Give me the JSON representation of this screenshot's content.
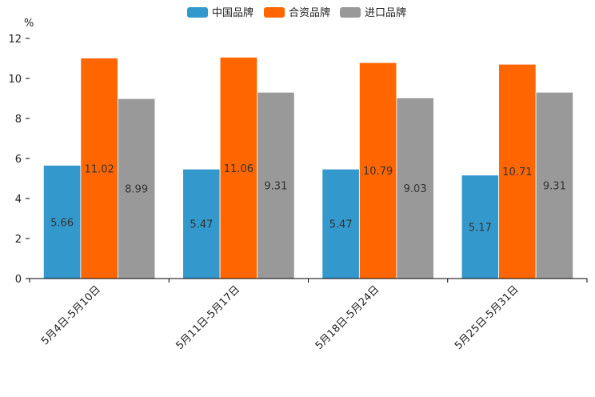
{
  "chart_data": {
    "type": "bar",
    "title": "",
    "unit_label": "%",
    "xlabel": "",
    "ylabel": "%",
    "ylim": [
      0,
      12
    ],
    "yticks": [
      0,
      2,
      4,
      6,
      8,
      10,
      12
    ],
    "grid": false,
    "legend_position": "top-center",
    "categories": [
      "5月4日-5月10日",
      "5月11日-5月17日",
      "5月18日-5月24日",
      "5月25日-5月31日"
    ],
    "series": [
      {
        "name": "中国品牌",
        "color": "#3399cc",
        "values": [
          5.66,
          5.47,
          5.47,
          5.17
        ],
        "labels": [
          "5.66",
          "5.47",
          "5.47",
          "5.17"
        ]
      },
      {
        "name": "合资品牌",
        "color": "#ff6600",
        "values": [
          11.02,
          11.06,
          10.79,
          10.71
        ],
        "labels": [
          "11.02",
          "11.06",
          "10.79",
          "10.71"
        ]
      },
      {
        "name": "进口品牌",
        "color": "#999999",
        "values": [
          8.99,
          9.31,
          9.03,
          9.31
        ],
        "labels": [
          "8.99",
          "9.31",
          "9.03",
          "9.31"
        ]
      }
    ]
  }
}
